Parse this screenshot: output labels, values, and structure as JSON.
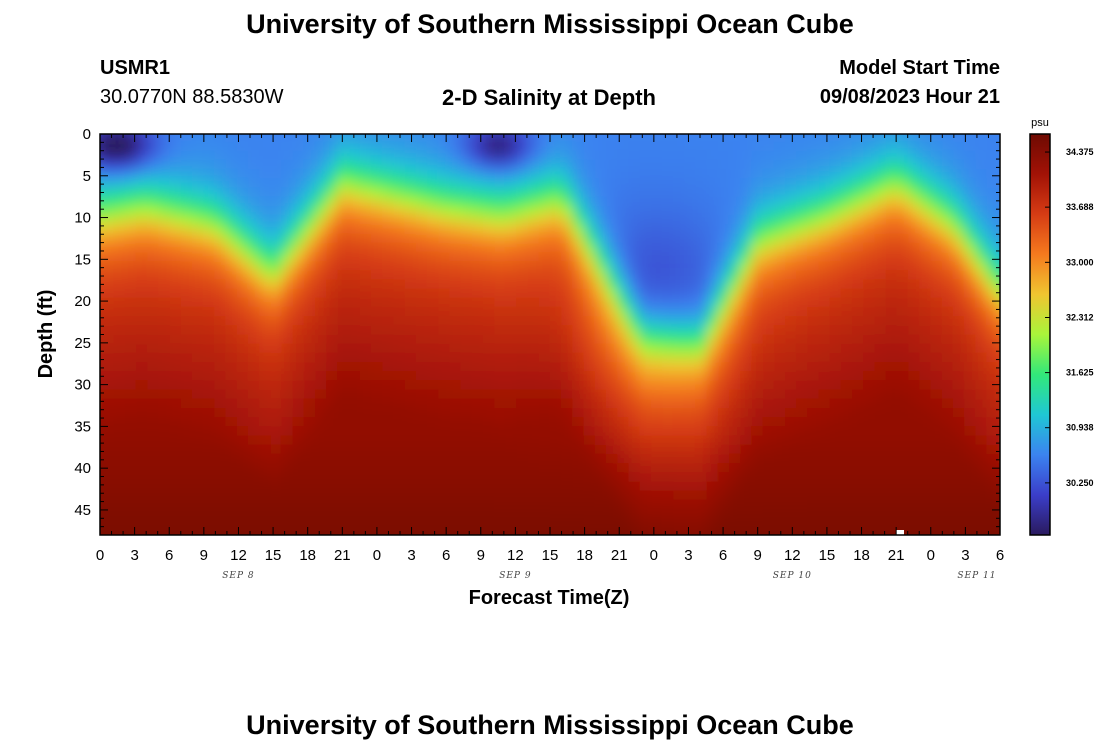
{
  "header": {
    "title": "University of Southern Mississippi Ocean Cube",
    "station_id": "USMR1",
    "coords": "30.0770N  88.5830W",
    "plot_title": "2-D Salinity at Depth",
    "model_start_label": "Model Start Time",
    "model_start_value": "09/08/2023 Hour 21"
  },
  "footer": {
    "title": "University of Southern Mississippi Ocean Cube"
  },
  "chart_data": {
    "type": "heatmap",
    "xlabel": "Forecast Time(Z)",
    "ylabel": "Depth (ft)",
    "x_hours_range": [
      0,
      78
    ],
    "y_range": [
      0,
      48
    ],
    "x_tick_labels": [
      "0",
      "3",
      "6",
      "9",
      "12",
      "15",
      "18",
      "21",
      "0",
      "3",
      "6",
      "9",
      "12",
      "15",
      "18",
      "21",
      "0",
      "3",
      "6",
      "9",
      "12",
      "15",
      "18",
      "21",
      "0",
      "3",
      "6"
    ],
    "x_date_labels": [
      {
        "label": "SEP 8",
        "hour": 12
      },
      {
        "label": "SEP 9",
        "hour": 36
      },
      {
        "label": "SEP 10",
        "hour": 60
      },
      {
        "label": "SEP 11",
        "hour": 76
      }
    ],
    "y_tick_values": [
      0,
      5,
      10,
      15,
      20,
      25,
      30,
      35,
      40,
      45
    ],
    "colorbar": {
      "unit": "psu",
      "range": [
        29.6,
        34.6
      ],
      "ticks": [
        "34.375",
        "33.688",
        "33.000",
        "32.312",
        "31.625",
        "30.938",
        "30.250"
      ]
    },
    "colormap": [
      "#2a1a5e",
      "#3b3ec9",
      "#3b83f0",
      "#1fc7d4",
      "#32e87a",
      "#a9f53a",
      "#f0c530",
      "#f57a1e",
      "#d63c14",
      "#a21206",
      "#6e0a02"
    ]
  }
}
